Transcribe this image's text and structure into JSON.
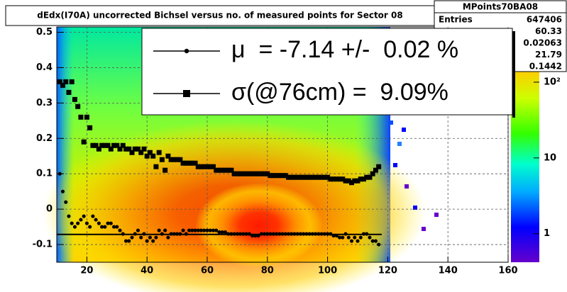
{
  "chart_data": {
    "type": "scatter",
    "title": "dEdx(I70A) uncorrected Bichsel versus no. of measured points for Sector 08",
    "xlim": [
      10,
      160
    ],
    "xticks": [
      20,
      40,
      60,
      80,
      100,
      120,
      140,
      160
    ],
    "ylim": [
      -0.15,
      0.515
    ],
    "yticks": [
      -0.1,
      0,
      0.1,
      0.2,
      0.3,
      0.4,
      0.5
    ],
    "zlim": [
      0.42,
      513
    ],
    "zticks": [
      1,
      10,
      {
        "value": 100,
        "label": "10²"
      }
    ],
    "zlog": true,
    "grid": true,
    "stats": {
      "title": "MPoints70BA08",
      "entries_label": "Entries",
      "values": [
        647406,
        60.33,
        0.02063,
        21.79,
        0.1442
      ]
    },
    "fit_line": {
      "x": [
        10,
        118
      ],
      "y": -0.0714
    },
    "x": [
      11,
      12,
      13,
      14,
      15,
      16,
      17,
      18,
      19,
      20,
      21,
      22,
      23,
      24,
      25,
      26,
      27,
      28,
      29,
      30,
      31,
      32,
      33,
      34,
      35,
      36,
      37,
      38,
      39,
      40,
      41,
      42,
      43,
      44,
      45,
      46,
      47,
      48,
      49,
      50,
      51,
      52,
      53,
      54,
      55,
      56,
      57,
      58,
      59,
      60,
      61,
      62,
      63,
      64,
      65,
      66,
      67,
      68,
      69,
      70,
      71,
      72,
      73,
      74,
      75,
      76,
      77,
      78,
      79,
      80,
      81,
      82,
      83,
      84,
      85,
      86,
      87,
      88,
      89,
      90,
      91,
      92,
      93,
      94,
      95,
      96,
      97,
      98,
      99,
      100,
      101,
      102,
      103,
      104,
      105,
      106,
      107,
      108,
      109,
      110,
      111,
      112,
      113,
      114,
      115,
      116,
      117
    ],
    "series": [
      {
        "name": "μ  = -7.14 +/-  0.02 %",
        "marker": "circle",
        "color": "#000000",
        "values": [
          0.1,
          0.05,
          0.02,
          -0.02,
          -0.04,
          -0.05,
          -0.04,
          -0.03,
          -0.02,
          -0.04,
          -0.05,
          -0.02,
          -0.03,
          -0.04,
          -0.05,
          -0.05,
          -0.04,
          -0.04,
          -0.05,
          -0.05,
          -0.06,
          -0.07,
          -0.09,
          -0.09,
          -0.08,
          -0.07,
          -0.06,
          -0.08,
          -0.07,
          -0.09,
          -0.08,
          -0.09,
          -0.08,
          -0.06,
          -0.07,
          -0.06,
          -0.08,
          -0.07,
          -0.07,
          -0.07,
          -0.07,
          -0.06,
          -0.07,
          -0.06,
          -0.06,
          -0.06,
          -0.06,
          -0.06,
          -0.06,
          -0.06,
          -0.06,
          -0.06,
          -0.06,
          -0.065,
          -0.065,
          -0.065,
          -0.07,
          -0.07,
          -0.07,
          -0.07,
          -0.07,
          -0.07,
          -0.07,
          -0.07,
          -0.075,
          -0.075,
          -0.075,
          -0.07,
          -0.07,
          -0.07,
          -0.07,
          -0.07,
          -0.07,
          -0.07,
          -0.07,
          -0.07,
          -0.07,
          -0.07,
          -0.07,
          -0.07,
          -0.07,
          -0.07,
          -0.07,
          -0.07,
          -0.07,
          -0.07,
          -0.07,
          -0.07,
          -0.07,
          -0.07,
          -0.07,
          -0.075,
          -0.075,
          -0.08,
          -0.08,
          -0.07,
          -0.08,
          -0.09,
          -0.08,
          -0.09,
          -0.08,
          -0.07,
          -0.07,
          -0.08,
          -0.09,
          -0.09,
          -0.1
        ]
      },
      {
        "name": "σ(@76cm) =  9.09%",
        "marker": "square",
        "color": "#000000",
        "values": [
          0.36,
          0.35,
          0.36,
          0.33,
          0.36,
          0.31,
          0.29,
          0.26,
          0.19,
          0.26,
          0.23,
          0.18,
          0.18,
          0.17,
          0.18,
          0.18,
          0.18,
          0.17,
          0.18,
          0.18,
          0.17,
          0.18,
          0.17,
          0.17,
          0.16,
          0.17,
          0.17,
          0.16,
          0.17,
          0.15,
          0.16,
          0.15,
          0.12,
          0.16,
          0.14,
          0.11,
          0.15,
          0.14,
          0.14,
          0.14,
          0.14,
          0.13,
          0.13,
          0.13,
          0.13,
          0.13,
          0.12,
          0.12,
          0.12,
          0.12,
          0.12,
          0.12,
          0.11,
          0.11,
          0.11,
          0.11,
          0.11,
          0.11,
          0.1,
          0.1,
          0.1,
          0.1,
          0.1,
          0.1,
          0.1,
          0.1,
          0.1,
          0.1,
          0.1,
          0.1,
          0.095,
          0.095,
          0.095,
          0.095,
          0.095,
          0.095,
          0.09,
          0.09,
          0.09,
          0.09,
          0.09,
          0.09,
          0.09,
          0.09,
          0.09,
          0.09,
          0.09,
          0.09,
          0.09,
          0.09,
          0.085,
          0.085,
          0.085,
          0.085,
          0.085,
          0.08,
          0.08,
          0.075,
          0.08,
          0.08,
          0.085,
          0.085,
          0.09,
          0.09,
          0.1,
          0.11,
          0.12
        ]
      }
    ]
  }
}
